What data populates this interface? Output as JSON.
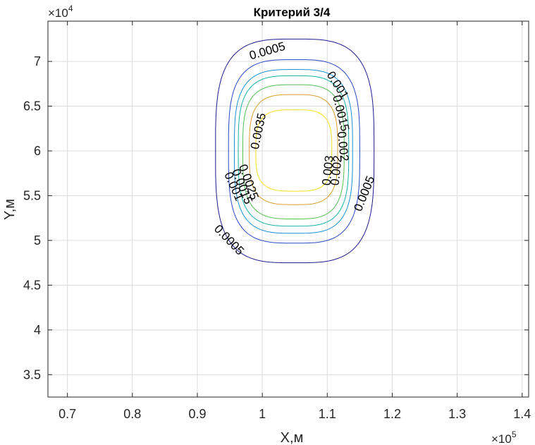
{
  "chart_data": {
    "type": "contour",
    "title": "Критерий  3/4",
    "xlabel": "X,м",
    "ylabel": "Y,м",
    "x_exponent": "×10",
    "x_exponent_power": "5",
    "y_exponent": "×10",
    "y_exponent_power": "4",
    "xlim": [
      0.67,
      1.41
    ],
    "ylim": [
      3.25,
      7.45
    ],
    "xticks": [
      0.7,
      0.8,
      0.9,
      1.0,
      1.1,
      1.2,
      1.3,
      1.4
    ],
    "xtick_labels": [
      "0.7",
      "0.8",
      "0.9",
      "1",
      "1.1",
      "1.2",
      "1.3",
      "1.4"
    ],
    "yticks": [
      3.5,
      4.0,
      4.5,
      5.0,
      5.5,
      6.0,
      6.5,
      7.0
    ],
    "ytick_labels": [
      "3.5",
      "4",
      "4.5",
      "5",
      "5.5",
      "6",
      "6.5",
      "7"
    ],
    "grid": true,
    "center": [
      1.05,
      6.0
    ],
    "levels": [
      {
        "value": 0.0005,
        "color": "#1e1b8c",
        "xmin": 0.928,
        "xmax": 1.172,
        "ymin": 4.75,
        "ymax": 7.25
      },
      {
        "value": 0.001,
        "color": "#2747c6",
        "xmin": 0.948,
        "xmax": 1.15,
        "ymin": 4.97,
        "ymax": 7.02
      },
      {
        "value": 0.0015,
        "color": "#1c8fd6",
        "xmin": 0.957,
        "xmax": 1.139,
        "ymin": 5.08,
        "ymax": 6.91
      },
      {
        "value": 0.002,
        "color": "#18b2a8",
        "xmin": 0.963,
        "xmax": 1.133,
        "ymin": 5.16,
        "ymax": 6.84
      },
      {
        "value": 0.0025,
        "color": "#55bf55",
        "xmin": 0.97,
        "xmax": 1.126,
        "ymin": 5.24,
        "ymax": 6.74
      },
      {
        "value": 0.003,
        "color": "#d6a030",
        "xmin": 0.98,
        "xmax": 1.116,
        "ymin": 5.4,
        "ymax": 6.63
      },
      {
        "value": 0.0035,
        "color": "#f2df1a",
        "xmin": 0.99,
        "xmax": 1.107,
        "ymin": 5.55,
        "ymax": 6.46
      }
    ],
    "contour_labels": [
      {
        "text": "0.0005",
        "x": 1.008,
        "y": 7.11,
        "angle": -16
      },
      {
        "text": "0.001",
        "x": 1.115,
        "y": 6.73,
        "angle": 58
      },
      {
        "text": "0.0015",
        "x": 1.12,
        "y": 6.42,
        "angle": 76
      },
      {
        "text": "0.002",
        "x": 1.123,
        "y": 6.05,
        "angle": 84
      },
      {
        "text": "0.0035",
        "x": 0.995,
        "y": 6.22,
        "angle": -78
      },
      {
        "text": "0.003",
        "x": 1.102,
        "y": 5.78,
        "angle": -84
      },
      {
        "text": "0.002",
        "x": 1.115,
        "y": 5.78,
        "angle": -84
      },
      {
        "text": "0.0025",
        "x": 0.978,
        "y": 5.65,
        "angle": 70
      },
      {
        "text": "0.0015",
        "x": 0.968,
        "y": 5.6,
        "angle": 68
      },
      {
        "text": "0.001",
        "x": 0.955,
        "y": 5.6,
        "angle": 66
      },
      {
        "text": "0.0005",
        "x": 1.158,
        "y": 5.52,
        "angle": -68
      },
      {
        "text": "0.0005",
        "x": 0.948,
        "y": 5.0,
        "angle": 46
      }
    ]
  }
}
